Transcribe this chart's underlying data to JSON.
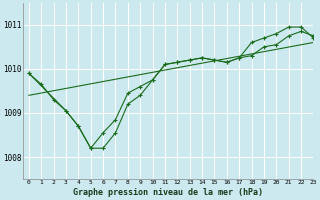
{
  "title": "Graphe pression niveau de la mer (hPa)",
  "bg_color": "#cce9f0",
  "line_color": "#1a6b1a",
  "grid_color": "#ffffff",
  "xlim": [
    -0.5,
    23
  ],
  "ylim": [
    1007.5,
    1011.5
  ],
  "yticks": [
    1008,
    1009,
    1010,
    1011
  ],
  "xticks": [
    0,
    1,
    2,
    3,
    4,
    5,
    6,
    7,
    8,
    9,
    10,
    11,
    12,
    13,
    14,
    15,
    16,
    17,
    18,
    19,
    20,
    21,
    22,
    23
  ],
  "series1_x": [
    0,
    1,
    2,
    3,
    4,
    5,
    6,
    7,
    8,
    9,
    10,
    11,
    12,
    13,
    14,
    15,
    16,
    17,
    18,
    19,
    20,
    21,
    22,
    23
  ],
  "series1_y": [
    1009.9,
    1009.65,
    1009.3,
    1009.05,
    1008.7,
    1008.2,
    1008.2,
    1008.55,
    1009.2,
    1009.4,
    1009.75,
    1010.1,
    1010.15,
    1010.2,
    1010.25,
    1010.2,
    1010.15,
    1010.25,
    1010.3,
    1010.5,
    1010.55,
    1010.75,
    1010.85,
    1010.75
  ],
  "series2_x": [
    0,
    3,
    4,
    5,
    6,
    7,
    8,
    9,
    10,
    11,
    12,
    13,
    14,
    15,
    16,
    17,
    18,
    19,
    20,
    21,
    22,
    23
  ],
  "series2_y": [
    1009.9,
    1009.05,
    1008.7,
    1008.2,
    1008.55,
    1008.85,
    1009.45,
    1009.6,
    1009.75,
    1010.1,
    1010.15,
    1010.2,
    1010.25,
    1010.2,
    1010.15,
    1010.25,
    1010.6,
    1010.7,
    1010.8,
    1010.95,
    1010.95,
    1010.7
  ],
  "trend_x": [
    0,
    23
  ],
  "trend_y": [
    1009.4,
    1010.6
  ]
}
